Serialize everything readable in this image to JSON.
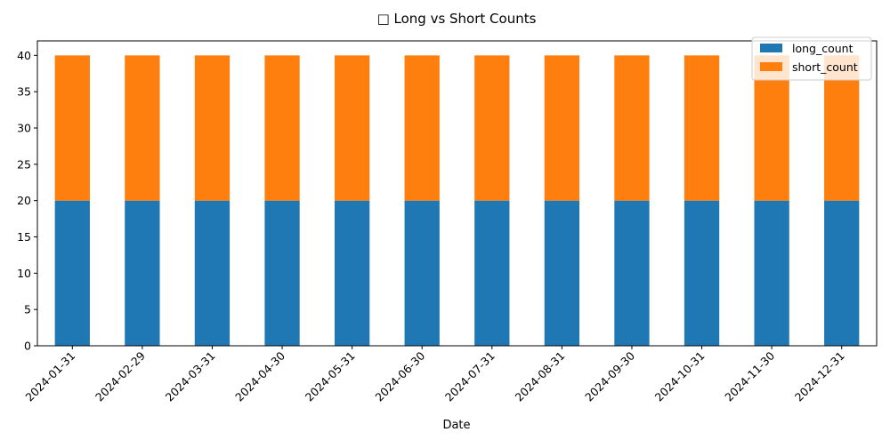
{
  "chart_data": {
    "type": "bar",
    "stacked": true,
    "title": "□ Long vs Short Counts",
    "xlabel": "Date",
    "ylabel": "",
    "categories": [
      "2024-01-31",
      "2024-02-29",
      "2024-03-31",
      "2024-04-30",
      "2024-05-31",
      "2024-06-30",
      "2024-07-31",
      "2024-08-31",
      "2024-09-30",
      "2024-10-31",
      "2024-11-30",
      "2024-12-31"
    ],
    "series": [
      {
        "name": "long_count",
        "color": "#1f77b4",
        "values": [
          20,
          20,
          20,
          20,
          20,
          20,
          20,
          20,
          20,
          20,
          20,
          20
        ]
      },
      {
        "name": "short_count",
        "color": "#ff7f0e",
        "values": [
          20,
          20,
          20,
          20,
          20,
          20,
          20,
          20,
          20,
          20,
          20,
          20
        ]
      }
    ],
    "ylim": [
      0,
      42
    ],
    "yticks": [
      0,
      5,
      10,
      15,
      20,
      25,
      30,
      35,
      40
    ],
    "grid": false,
    "legend_position": "top-right"
  }
}
